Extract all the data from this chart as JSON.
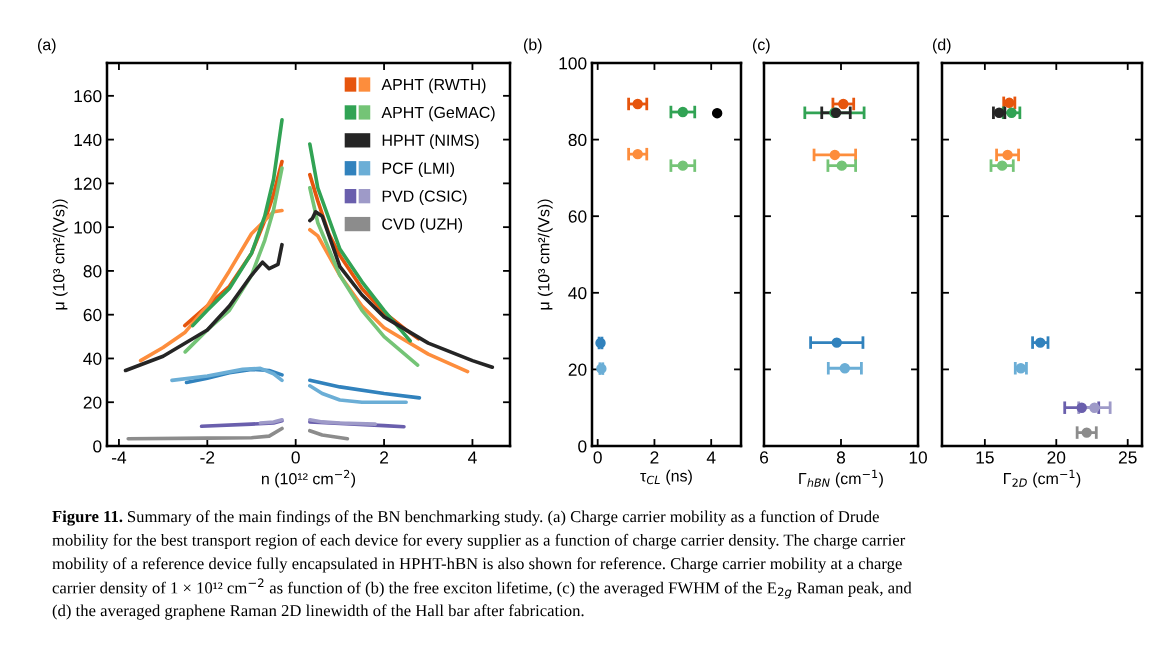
{
  "chart_data": [
    {
      "type": "line",
      "title": "(a)",
      "xlabel": "n (10¹² cm$^{−2}$)",
      "ylabel": "μ (10³ cm²/(Vs))",
      "xlim": [
        -4.27,
        4.85
      ],
      "ylim": [
        0,
        175
      ],
      "xticks": [
        -4,
        -2,
        0,
        2,
        4
      ],
      "yticks": [
        0,
        20,
        40,
        60,
        80,
        100,
        120,
        140,
        160
      ],
      "legend": "top right",
      "series": [
        {
          "color": "#e6550d",
          "x": [
            -2.51,
            -2,
            -1.5,
            -1,
            -0.7,
            -0.5,
            -0.31,
            0,
            0.32,
            0.5,
            0.75,
            1,
            1.5,
            2,
            2.5,
            2.78
          ],
          "values": [
            55,
            64,
            73,
            88,
            103,
            115,
            130,
            null,
            124,
            112,
            97,
            87,
            72,
            61,
            53,
            49
          ]
        },
        {
          "name": "APHT (RWTH)",
          "color": "#fd8d3c",
          "x": [
            -3.51,
            -3,
            -2.5,
            -2,
            -1.5,
            -1,
            -0.5,
            -0.31,
            0,
            0.32,
            0.5,
            1,
            1.5,
            2,
            3,
            3.89
          ],
          "values": [
            39,
            45,
            52,
            64,
            80,
            97,
            107,
            107.6,
            null,
            98.8,
            96,
            78,
            64,
            54,
            42,
            34
          ]
        },
        {
          "color": "#31a354",
          "x": [
            -2.33,
            -2,
            -1.5,
            -1,
            -0.7,
            -0.5,
            -0.31,
            0,
            0.32,
            0.5,
            1,
            1.5,
            2,
            2.59
          ],
          "values": [
            55,
            62,
            72,
            88,
            105,
            122,
            149,
            null,
            138,
            118,
            90,
            75,
            62,
            48
          ]
        },
        {
          "name": "APHT (GeMAC)",
          "color": "#74c476",
          "x": [
            -2.5,
            -2,
            -1.5,
            -1,
            -0.7,
            -0.5,
            -0.31,
            0,
            0.32,
            0.5,
            1,
            1.5,
            2,
            2.76
          ],
          "values": [
            43,
            53,
            62,
            78,
            94,
            108,
            127,
            null,
            118,
            102,
            78,
            62,
            50,
            37
          ]
        },
        {
          "name": "HPHT (NIMS)",
          "color": "#252525",
          "x": [
            -3.85,
            -3,
            -2,
            -1.5,
            -1,
            -0.75,
            -0.6,
            -0.4,
            -0.31,
            0,
            0.32,
            0.38,
            0.45,
            0.6,
            1,
            1.5,
            2,
            3,
            4,
            4.45
          ],
          "values": [
            34.5,
            41,
            53,
            64,
            78,
            84,
            81,
            83,
            92,
            null,
            103,
            104,
            107,
            105,
            82,
            69,
            59,
            47,
            39,
            36
          ]
        },
        {
          "color": "#3182bd",
          "x": [
            -2.47,
            -2,
            -1.5,
            -1,
            -0.6,
            -0.31,
            0,
            0.32,
            1,
            2,
            2.8
          ],
          "values": [
            29,
            31,
            33.5,
            35,
            34.5,
            32.5,
            null,
            30,
            27,
            24,
            22
          ]
        },
        {
          "name": "PCF (LMI)",
          "color": "#6baed6",
          "x": [
            -2.8,
            -2,
            -1.2,
            -0.8,
            -0.5,
            -0.31,
            0,
            0.32,
            0.6,
            1,
            1.5,
            2.5
          ],
          "values": [
            30,
            32,
            35,
            35.5,
            33,
            30,
            null,
            27.5,
            24,
            21,
            20,
            20
          ]
        },
        {
          "color": "#6a5fad",
          "x": [
            -2.13,
            -1,
            -0.5,
            -0.31,
            0,
            0.32,
            1,
            2,
            2.45
          ],
          "values": [
            9,
            10,
            10.5,
            11.5,
            null,
            11,
            10.3,
            9.3,
            8.8
          ]
        },
        {
          "name": "PVD (CSIC)",
          "color": "#9e9ac8",
          "x": [
            -0.8,
            -0.5,
            -0.31,
            0,
            0.32,
            0.6,
            1,
            1.8
          ],
          "values": [
            10.5,
            11,
            12,
            null,
            12,
            11,
            10.5,
            10
          ]
        },
        {
          "name": "CVD (UZH)",
          "color": "#8c8c8c",
          "x": [
            -3.79,
            -2,
            -1,
            -0.6,
            -0.31,
            0,
            0.32,
            0.6,
            1.17
          ],
          "values": [
            3.3,
            3.6,
            3.8,
            4.5,
            8,
            null,
            7,
            5,
            3.3
          ]
        }
      ],
      "annotations": [
        "Figure 11.",
        "Summary of the main findings of the BN benchmarking study. (a) Charge carrier mobility as a function of Drude",
        "mobility for the best transport region of each device for every supplier as a function of charge carrier density. The charge carrier",
        "mobility of a reference device fully encapsulated in HPHT-hBN is also shown for reference. Charge carrier mobility at a charge",
        "carrier density of 1 × 10¹² cm$^{−2}$ as function of (b) the free exciton lifetime, (c) the averaged FWHM of the E$_{2g}$ Raman peak, and",
        "(d) the averaged graphene Raman 2D linewidth of the Hall bar after fabrication."
      ]
    },
    {
      "type": "scatter",
      "title": "(b)",
      "xlabel": "τ$_{CL}$ (ns)",
      "ylabel": "μ (10³ cm²/(Vs))",
      "xlim": [
        -0.2,
        5.05
      ],
      "ylim": [
        0,
        100
      ],
      "xticks": [
        0,
        2,
        4
      ],
      "yticks": [
        0,
        20,
        40,
        60,
        80,
        100
      ],
      "marker": "circle",
      "series": [
        {
          "color": "#e6550d",
          "x": [
            1.41
          ],
          "values": [
            89.3
          ],
          "xerrors": [
            0.32
          ]
        },
        {
          "color": "#fd8d3c",
          "x": [
            1.41
          ],
          "values": [
            76.2
          ],
          "xerrors": [
            0.32
          ]
        },
        {
          "color": "#31a354",
          "x": [
            3.0
          ],
          "values": [
            87.2
          ],
          "xerrors": [
            0.42
          ]
        },
        {
          "color": "#74c476",
          "x": [
            3.0
          ],
          "values": [
            73.2
          ],
          "xerrors": [
            0.42
          ]
        },
        {
          "color": "#000000",
          "x": [
            4.21
          ],
          "values": [
            86.9
          ]
        },
        {
          "color": "#3182bd",
          "x": [
            0.1
          ],
          "values": [
            26.9
          ],
          "xerrors": [
            0.05
          ]
        },
        {
          "color": "#6baed6",
          "x": [
            0.13
          ],
          "values": [
            20.2
          ],
          "xerrors": [
            0.05
          ]
        }
      ]
    },
    {
      "type": "scatter",
      "title": "(c)",
      "xlabel": "Γ$_{hBN}$ (cm$^{−1}$)",
      "xlim": [
        6,
        10
      ],
      "ylim": [
        0,
        100
      ],
      "xticks": [
        6,
        8,
        10
      ],
      "yticks": [
        0,
        20,
        40,
        60,
        80,
        100
      ],
      "marker": "circle",
      "tick_labels": "x",
      "series": [
        {
          "color": "#31a354",
          "x": [
            7.83
          ],
          "values": [
            87
          ],
          "xerrors": [
            0.77
          ]
        },
        {
          "color": "#e6550d",
          "x": [
            8.06
          ],
          "values": [
            89.3
          ],
          "xerrors": [
            0.27
          ]
        },
        {
          "color": "#252525",
          "x": [
            7.87
          ],
          "values": [
            87
          ],
          "xerrors": [
            0.37
          ]
        },
        {
          "color": "#fd8d3c",
          "x": [
            7.84
          ],
          "values": [
            76
          ],
          "xerrors": [
            0.54
          ]
        },
        {
          "color": "#74c476",
          "x": [
            8.02
          ],
          "values": [
            73.2
          ],
          "xerrors": [
            0.36
          ]
        },
        {
          "color": "#3182bd",
          "x": [
            7.89
          ],
          "values": [
            27
          ],
          "xerrors": [
            0.68
          ]
        },
        {
          "color": "#6baed6",
          "x": [
            8.1
          ],
          "values": [
            20.3
          ],
          "xerrors": [
            0.43
          ]
        }
      ]
    },
    {
      "type": "scatter",
      "title": "(d)",
      "xlabel": "Γ$_{2D}$ (cm$^{−1}$)",
      "xlim": [
        12,
        26
      ],
      "ylim": [
        0,
        100
      ],
      "xticks": [
        15,
        20,
        25
      ],
      "yticks": [
        0,
        20,
        40,
        60,
        80,
        100
      ],
      "marker": "circle",
      "tick_labels": "x",
      "series": [
        {
          "color": "#e6550d",
          "x": [
            16.71
          ],
          "values": [
            89.6
          ],
          "xerrors": [
            0.39
          ]
        },
        {
          "color": "#31a354",
          "x": [
            16.87
          ],
          "values": [
            87
          ],
          "xerrors": [
            0.58
          ]
        },
        {
          "color": "#252525",
          "x": [
            16.0
          ],
          "values": [
            87
          ],
          "xerrors": [
            0.4
          ]
        },
        {
          "color": "#fd8d3c",
          "x": [
            16.59
          ],
          "values": [
            76
          ],
          "xerrors": [
            0.77
          ]
        },
        {
          "color": "#74c476",
          "x": [
            16.21
          ],
          "values": [
            73.2
          ],
          "xerrors": [
            0.78
          ]
        },
        {
          "color": "#3182bd",
          "x": [
            18.88
          ],
          "values": [
            27
          ],
          "xerrors": [
            0.54
          ]
        },
        {
          "color": "#6baed6",
          "x": [
            17.52
          ],
          "values": [
            20.3
          ],
          "xerrors": [
            0.39
          ]
        },
        {
          "color": "#6a5fad",
          "x": [
            21.78
          ],
          "values": [
            10
          ],
          "xerrors": [
            1.19
          ]
        },
        {
          "color": "#9e9ac8",
          "x": [
            22.67
          ],
          "values": [
            10
          ],
          "xerrors": [
            1.1
          ]
        },
        {
          "color": "#8c8c8c",
          "x": [
            22.13
          ],
          "values": [
            3.5
          ],
          "xerrors": [
            0.67
          ]
        }
      ]
    }
  ]
}
